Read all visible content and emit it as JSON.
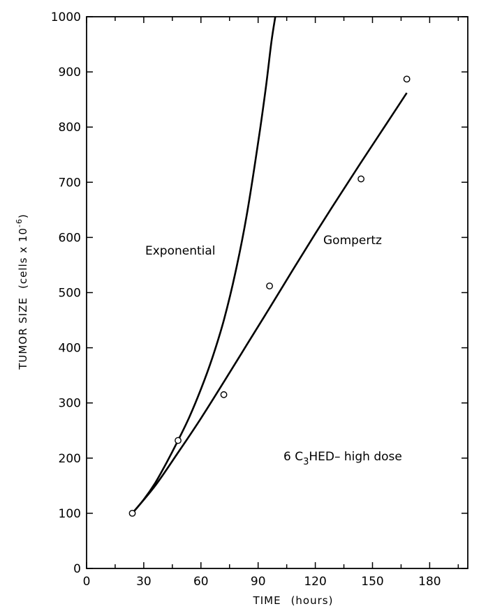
{
  "chart_data": {
    "type": "line",
    "xlabel_main": "TIME",
    "xlabel_unit": "(hours)",
    "ylabel_main": "TUMOR SIZE",
    "ylabel_unit_prefix": "(cells x 10",
    "ylabel_unit_exp": "-6",
    "ylabel_unit_suffix": ")",
    "xlim": [
      0,
      200
    ],
    "ylim": [
      0,
      1000
    ],
    "x_ticks": [
      0,
      30,
      60,
      90,
      120,
      150,
      180
    ],
    "y_ticks": [
      0,
      100,
      200,
      300,
      400,
      500,
      600,
      700,
      800,
      900,
      1000
    ],
    "grid": false,
    "points": [
      {
        "x": 24,
        "y": 100
      },
      {
        "x": 48,
        "y": 232
      },
      {
        "x": 72,
        "y": 315
      },
      {
        "x": 96,
        "y": 512
      },
      {
        "x": 144,
        "y": 706
      },
      {
        "x": 168,
        "y": 887
      }
    ],
    "series": [
      {
        "name": "Exponential",
        "x": [
          24,
          30,
          36,
          42,
          48,
          54,
          60,
          66,
          72,
          78,
          84,
          90,
          94,
          97,
          99
        ],
        "y": [
          100,
          125,
          155,
          192,
          232,
          275,
          325,
          382,
          450,
          535,
          640,
          772,
          870,
          955,
          1000
        ]
      },
      {
        "name": "Gompertz",
        "x": [
          24,
          36,
          48,
          60,
          72,
          84,
          96,
          108,
          120,
          132,
          144,
          156,
          168
        ],
        "y": [
          100,
          150,
          210,
          272,
          338,
          405,
          472,
          540,
          607,
          672,
          736,
          799,
          862
        ]
      }
    ],
    "annotations": {
      "exponential": "Exponential",
      "gompertz": "Gompertz",
      "condition_prefix": "6 C",
      "condition_sub": "3",
      "condition_suffix": "HED– high dose"
    }
  }
}
